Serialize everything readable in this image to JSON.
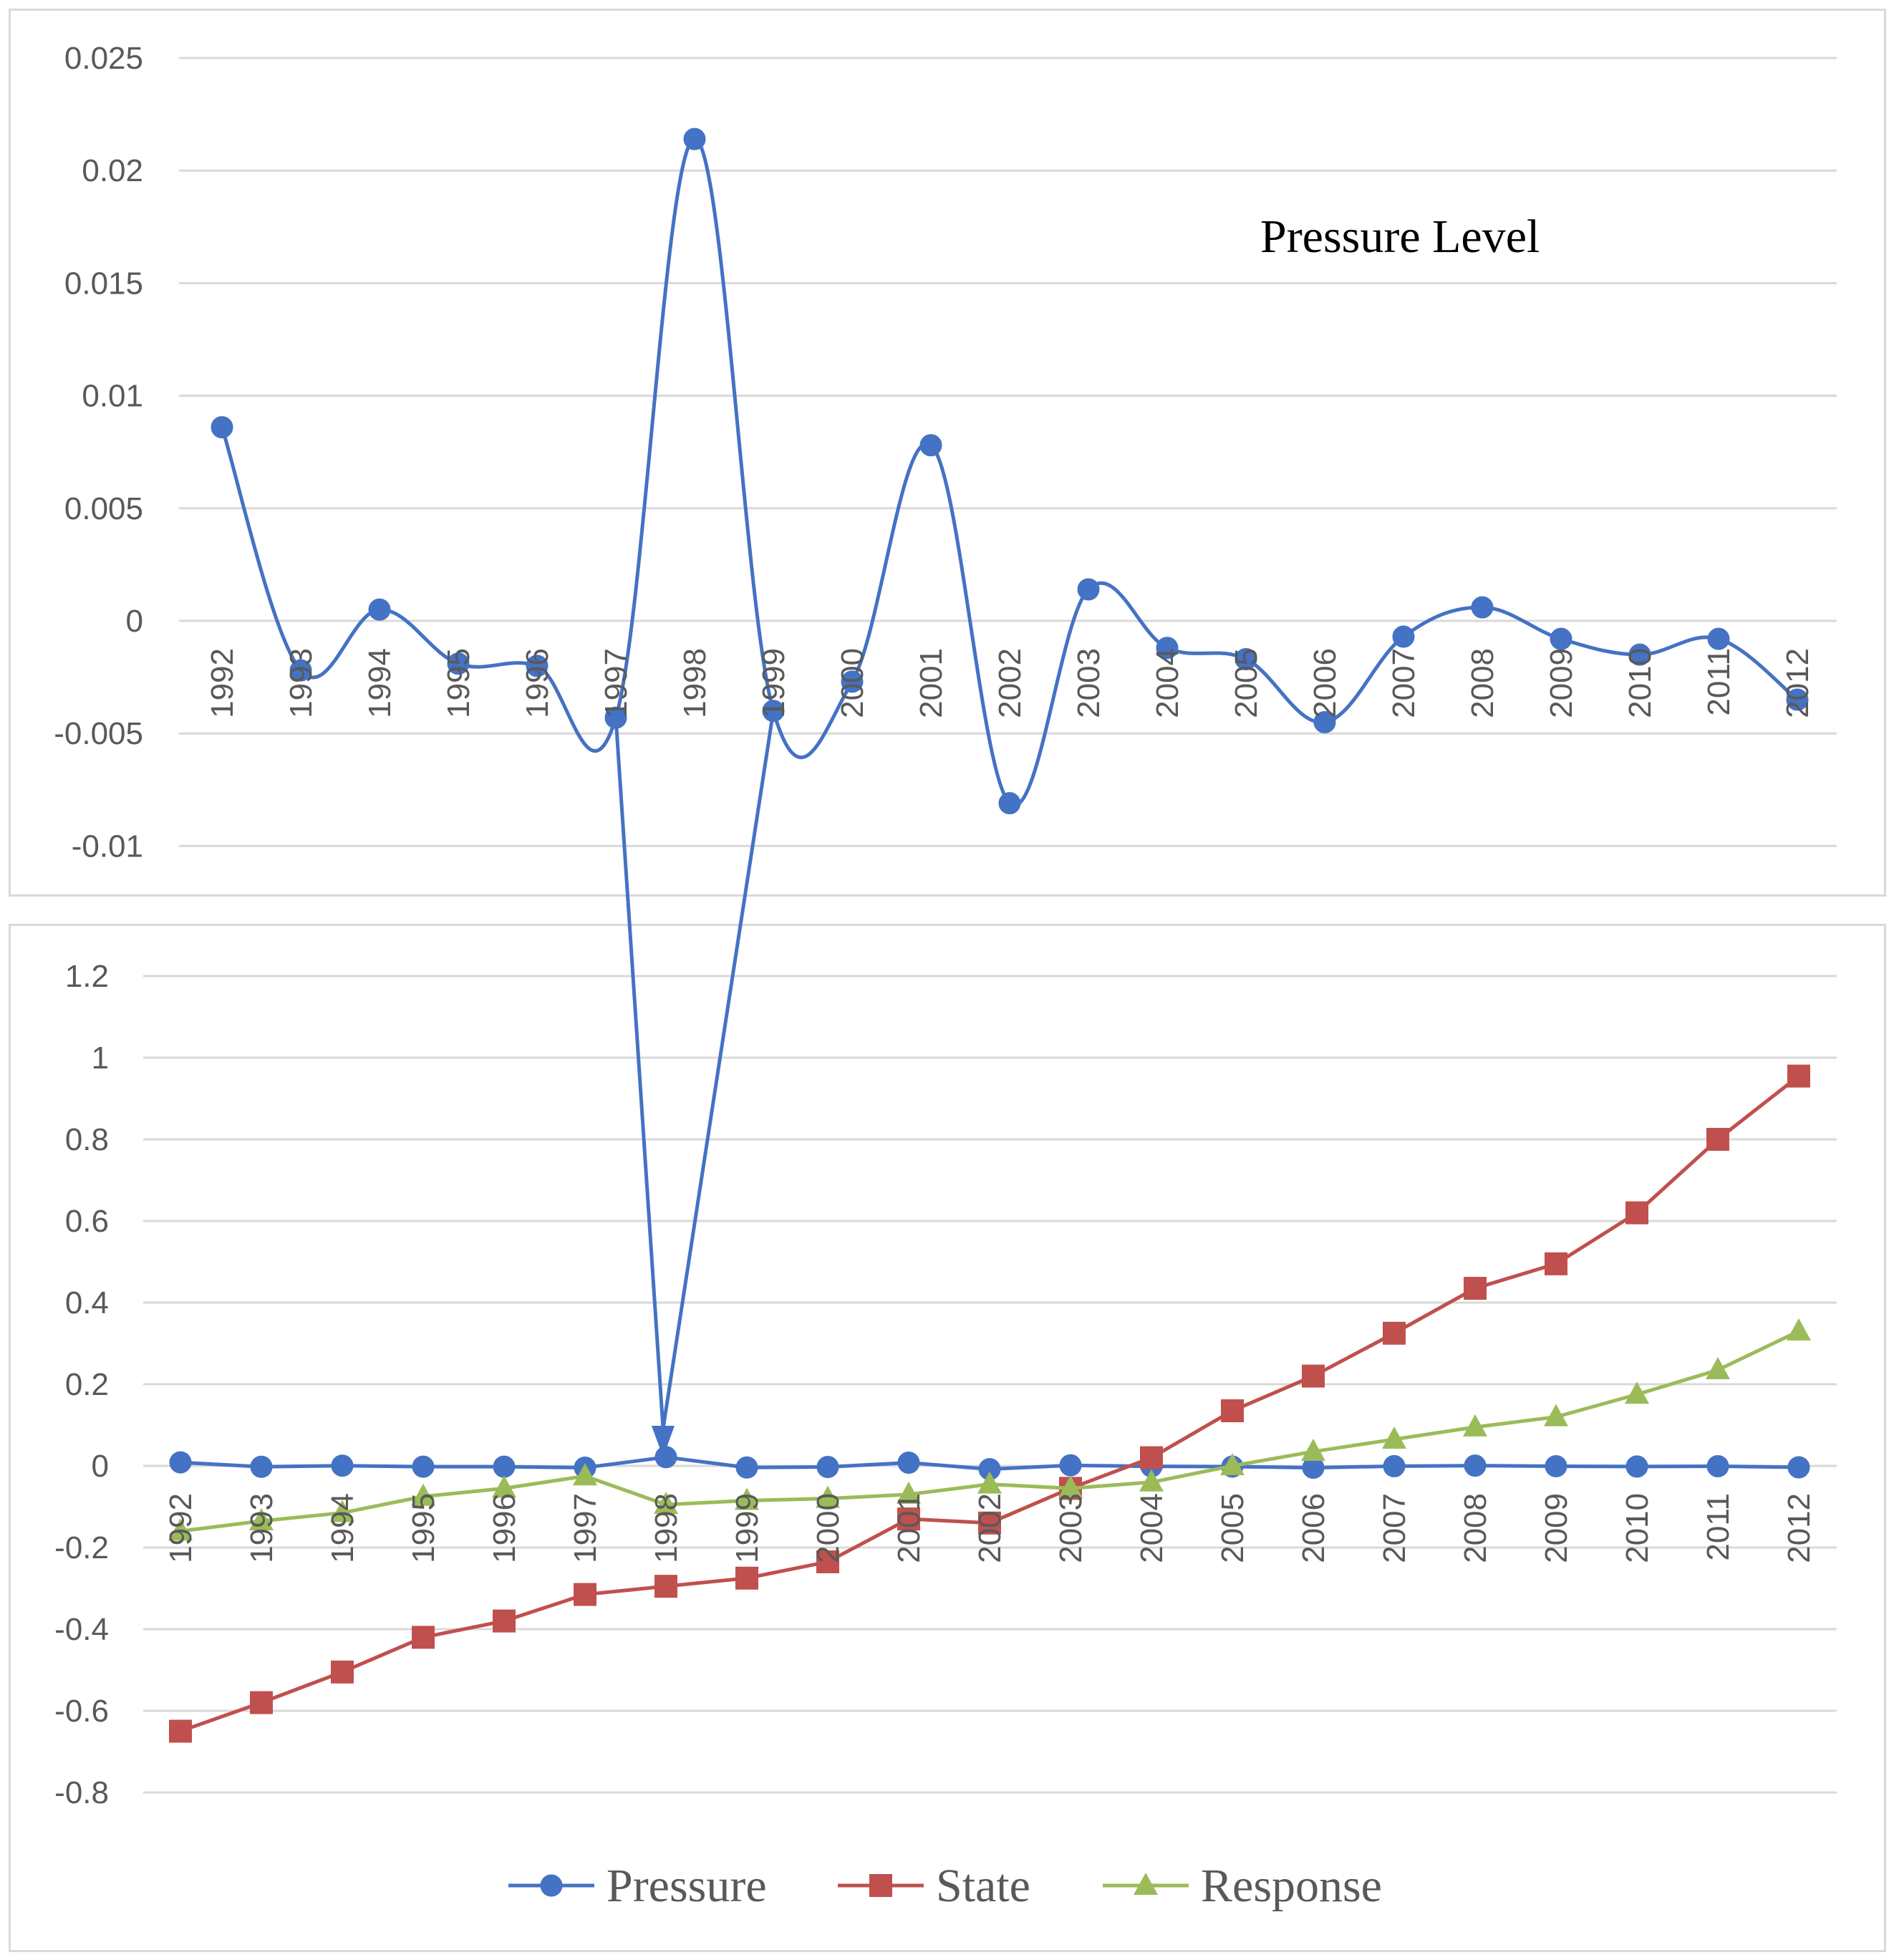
{
  "chart_data": [
    {
      "type": "line",
      "title": "",
      "annotation": "Pressure Level",
      "categories": [
        "1992",
        "1993",
        "1994",
        "1995",
        "1996",
        "1997",
        "1998",
        "1999",
        "2000",
        "2001",
        "2002",
        "2003",
        "2004",
        "2005",
        "2006",
        "2007",
        "2008",
        "2009",
        "2010",
        "2011",
        "2012"
      ],
      "y_ticks": [
        "0.025",
        "0.02",
        "0.015",
        "0.01",
        "0.005",
        "0",
        "-0.005",
        "-0.01"
      ],
      "ylim": [
        -0.01,
        0.025
      ],
      "grid": true,
      "series": [
        {
          "name": "Pressure",
          "color": "#4472c4",
          "marker": "circle",
          "smooth": true,
          "values": [
            0.0086,
            -0.0022,
            0.0005,
            -0.0019,
            -0.002,
            -0.0043,
            0.0214,
            -0.004,
            -0.0027,
            0.0078,
            -0.0081,
            0.0014,
            -0.0012,
            -0.0017,
            -0.0045,
            -0.0007,
            0.0006,
            -0.0008,
            -0.0015,
            -0.0008,
            -0.0035
          ]
        }
      ]
    },
    {
      "type": "line",
      "title": "",
      "categories": [
        "1992",
        "1993",
        "1994",
        "1995",
        "1996",
        "1997",
        "1998",
        "1999",
        "2000",
        "2001",
        "2002",
        "2003",
        "2004",
        "2005",
        "2006",
        "2007",
        "2008",
        "2009",
        "2010",
        "2011",
        "2012"
      ],
      "y_ticks": [
        "1.2",
        "1",
        "0.8",
        "0.6",
        "0.4",
        "0.2",
        "0",
        "-0.2",
        "-0.4",
        "-0.6",
        "-0.8"
      ],
      "ylim": [
        -0.8,
        1.2
      ],
      "grid": true,
      "legend_position": "bottom",
      "series": [
        {
          "name": "Pressure",
          "color": "#4472c4",
          "marker": "circle",
          "values": [
            0.0086,
            -0.0022,
            0.0005,
            -0.0019,
            -0.002,
            -0.0043,
            0.0214,
            -0.004,
            -0.0027,
            0.0078,
            -0.0081,
            0.0014,
            -0.0012,
            -0.0017,
            -0.0045,
            -0.0007,
            0.0006,
            -0.0008,
            -0.0015,
            -0.0008,
            -0.0035
          ]
        },
        {
          "name": "State",
          "color": "#c0504d",
          "marker": "square",
          "values": [
            -0.65,
            -0.58,
            -0.505,
            -0.42,
            -0.38,
            -0.315,
            -0.295,
            -0.275,
            -0.235,
            -0.13,
            -0.14,
            -0.055,
            0.02,
            0.135,
            0.22,
            0.325,
            0.435,
            0.495,
            0.62,
            0.8,
            0.955
          ]
        },
        {
          "name": "Response",
          "color": "#9bbb59",
          "marker": "triangle",
          "values": [
            -0.16,
            -0.135,
            -0.115,
            -0.075,
            -0.055,
            -0.025,
            -0.095,
            -0.085,
            -0.08,
            -0.07,
            -0.045,
            -0.055,
            -0.04,
            0.0,
            0.035,
            0.065,
            0.095,
            0.12,
            0.175,
            0.235,
            0.33
          ]
        }
      ]
    }
  ]
}
